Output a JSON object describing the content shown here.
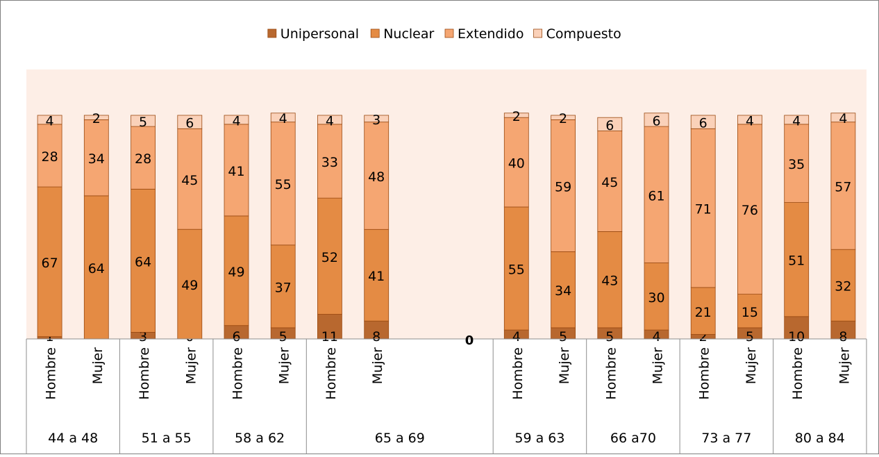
{
  "chart_data": {
    "type": "bar",
    "stacked": true,
    "legend_position": "top",
    "series": [
      {
        "name": "Unipersonal",
        "color": "#B8682F",
        "values": [
          1,
          null,
          3,
          0,
          6,
          5,
          11,
          8,
          null,
          null,
          4,
          5,
          5,
          4,
          2,
          5,
          10,
          8
        ]
      },
      {
        "name": "Nuclear",
        "color": "#E48B44",
        "values": [
          67,
          64,
          64,
          49,
          49,
          37,
          52,
          41,
          null,
          null,
          55,
          34,
          43,
          30,
          21,
          15,
          51,
          32
        ]
      },
      {
        "name": "Extendido",
        "color": "#F5A672",
        "values": [
          28,
          34,
          28,
          45,
          41,
          55,
          33,
          48,
          null,
          null,
          40,
          59,
          45,
          61,
          71,
          76,
          35,
          57
        ]
      },
      {
        "name": "Compuesto",
        "color": "#FAD1B9",
        "values": [
          4,
          2,
          5,
          6,
          4,
          4,
          4,
          3,
          null,
          null,
          2,
          2,
          6,
          6,
          6,
          4,
          4,
          4
        ]
      }
    ],
    "categories": [
      "Hombre",
      "Mujer",
      "Hombre",
      "Mujer",
      "Hombre",
      "Mujer",
      "Hombre",
      "Mujer",
      "",
      "",
      "Hombre",
      "Mujer",
      "Hombre",
      "Mujer",
      "Hombre",
      "Mujer",
      "Hombre",
      "Mujer"
    ],
    "groups": [
      {
        "label": "44 a 48",
        "span": 2
      },
      {
        "label": "51 a 55",
        "span": 2
      },
      {
        "label": "58 a 62",
        "span": 2
      },
      {
        "label": "65 a 69",
        "span": 4
      },
      {
        "label": "59 a 63",
        "span": 2
      },
      {
        "label": "66 a70",
        "span": 2
      },
      {
        "label": "73 a 77",
        "span": 2
      },
      {
        "label": "80 a 84",
        "span": 2
      }
    ],
    "zero_label": "0",
    "ylim": [
      0,
      100
    ],
    "plot_background": "#FDEEE6",
    "grid": false
  }
}
